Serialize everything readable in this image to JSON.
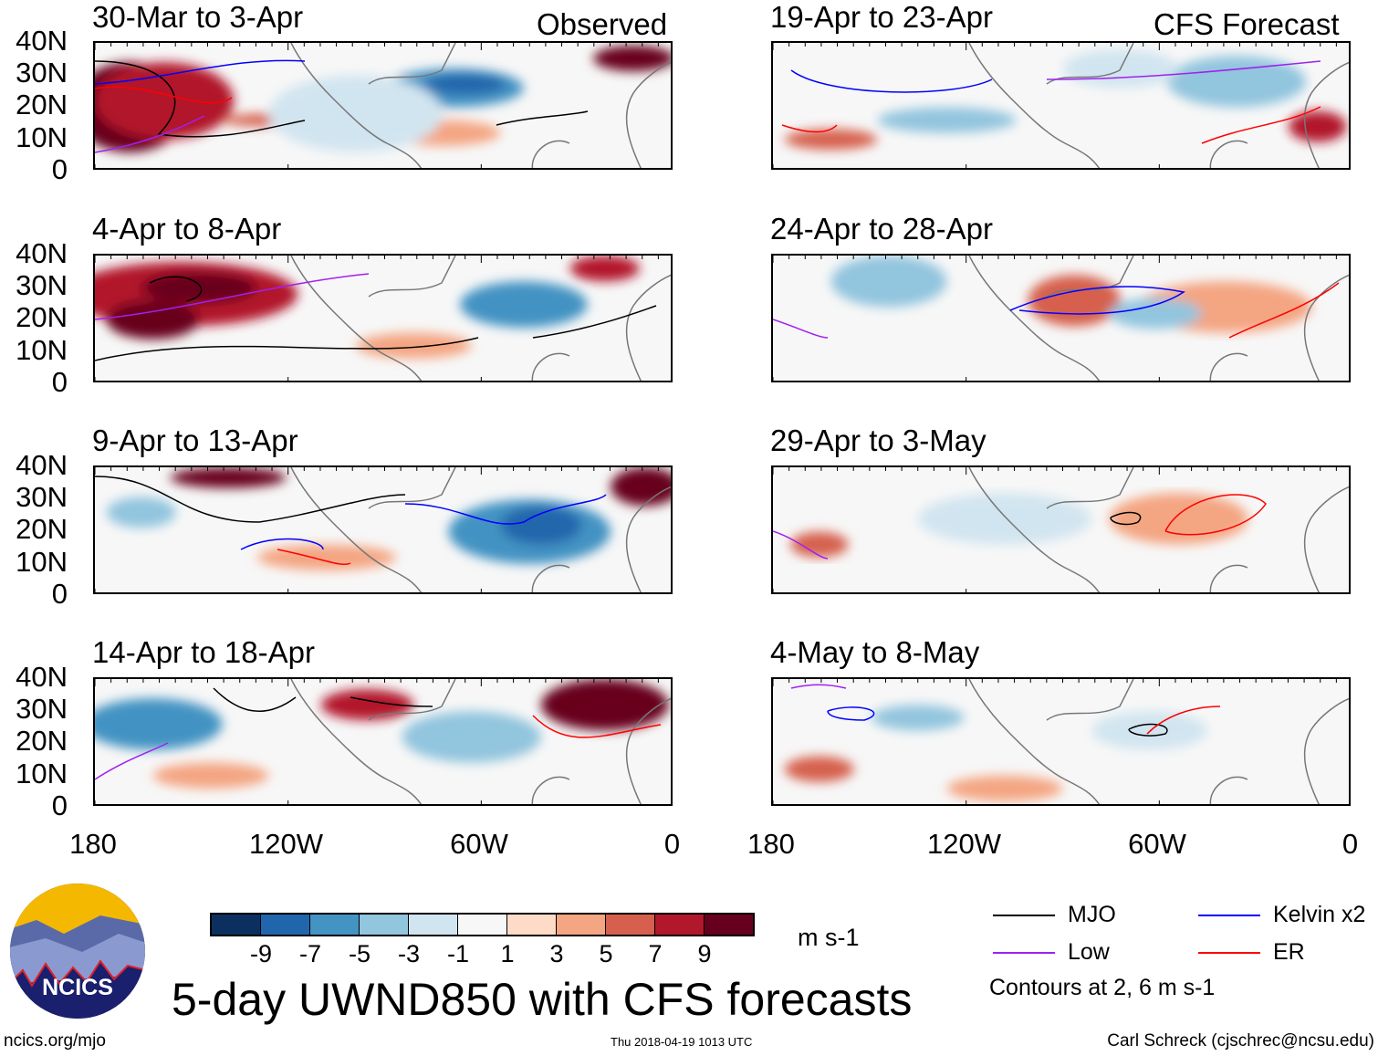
{
  "header": {
    "observed_label": "Observed",
    "forecast_label": "CFS Forecast"
  },
  "panels": {
    "left": [
      "30-Mar to 3-Apr",
      "4-Apr to 8-Apr",
      "9-Apr to 13-Apr",
      "14-Apr to 18-Apr"
    ],
    "right": [
      "19-Apr to 23-Apr",
      "24-Apr to 28-Apr",
      "29-Apr to 3-May",
      "4-May to 8-May"
    ]
  },
  "axes": {
    "lat_labels": [
      "40N",
      "30N",
      "20N",
      "10N",
      "0"
    ],
    "lon_labels": [
      "180",
      "120W",
      "60W",
      "0"
    ]
  },
  "colorbar": {
    "labels": [
      "-9",
      "-7",
      "-5",
      "-3",
      "-1",
      "1",
      "3",
      "5",
      "7",
      "9"
    ],
    "colors": [
      "#0b3060",
      "#2166ac",
      "#4393c3",
      "#92c5de",
      "#d1e5f0",
      "#f7f7f7",
      "#fddbc7",
      "#f4a582",
      "#d6604d",
      "#b2182b",
      "#67001f"
    ],
    "units": "m s-1"
  },
  "legend": {
    "items": [
      {
        "label": "MJO",
        "color": "#000000"
      },
      {
        "label": "Kelvin x2",
        "color": "#0000ff"
      },
      {
        "label": "Low",
        "color": "#a020f0"
      },
      {
        "label": "ER",
        "color": "#ff0000"
      }
    ],
    "contours_note": "Contours at 2, 6 m s-1"
  },
  "title": "5-day UWND850 with CFS forecasts",
  "logo_text": "NCICS",
  "footer": {
    "url": "ncics.org/mjo",
    "timestamp": "Thu 2018-04-19 1013 UTC",
    "author": "Carl Schreck (cjschrec@ncsu.edu)"
  }
}
